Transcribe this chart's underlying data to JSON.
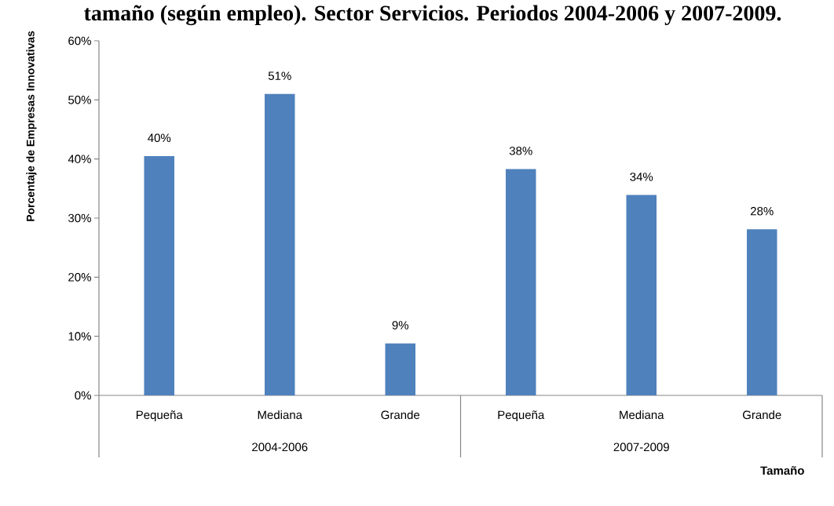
{
  "chart_data": {
    "type": "bar",
    "title": "tamaño (según empleo). Sector Servicios. Periodos 2004-2006 y 2007-2009.",
    "ylabel": "Porcentaje de Empresas Innovativas",
    "xlabel": "Tamaño",
    "categories": [
      "Pequeña",
      "Mediana",
      "Grande",
      "Pequeña",
      "Mediana",
      "Grande"
    ],
    "values": [
      40.5,
      51.0,
      8.8,
      38.3,
      33.9,
      28.1
    ],
    "value_labels": [
      "40%",
      "51%",
      "9%",
      "38%",
      "34%",
      "28%"
    ],
    "color": "#4f81bd",
    "ylim": [
      0,
      60
    ],
    "yticks": [
      {
        "value": 0,
        "label": "0%"
      },
      {
        "value": 10,
        "label": "10%"
      },
      {
        "value": 20,
        "label": "20%"
      },
      {
        "value": 30,
        "label": "30%"
      },
      {
        "value": 40,
        "label": "40%"
      },
      {
        "value": 50,
        "label": "50%"
      },
      {
        "value": 60,
        "label": "60%"
      }
    ],
    "annotations": [
      "2004-2006",
      "2007-2009"
    ]
  }
}
